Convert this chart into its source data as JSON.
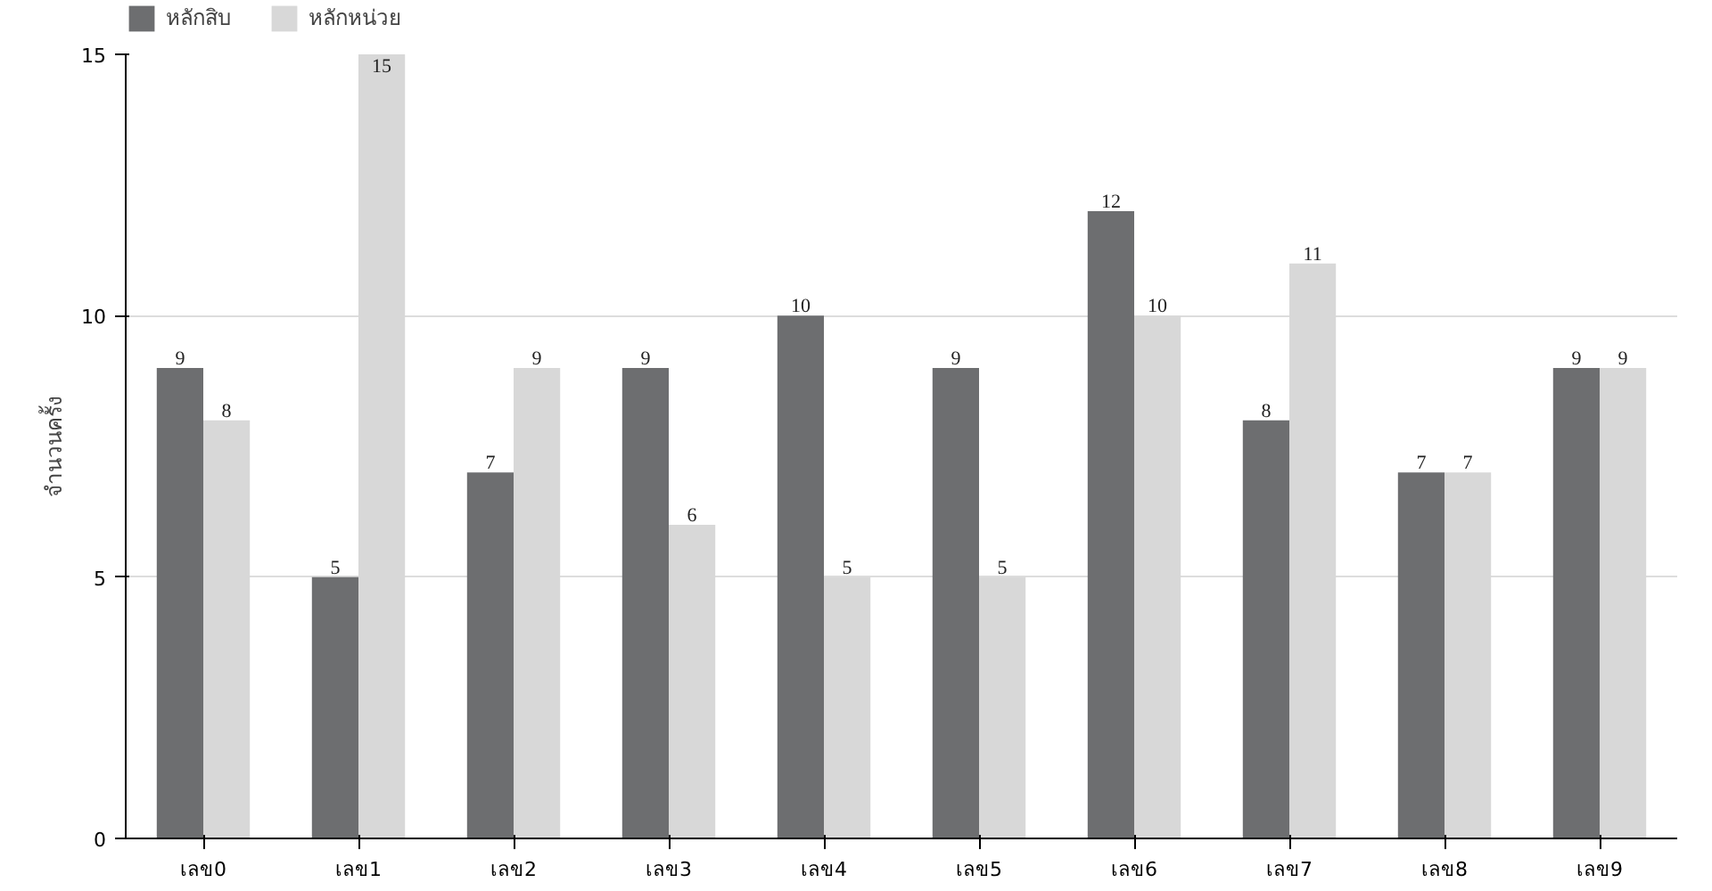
{
  "chart_data": {
    "type": "bar",
    "ylabel": "จำนวนครั้ง",
    "categories": [
      "เลข0",
      "เลข1",
      "เลข2",
      "เลข3",
      "เลข4",
      "เลข5",
      "เลข6",
      "เลข7",
      "เลข8",
      "เลข9"
    ],
    "series": [
      {
        "name": "หลักสิบ",
        "color": "#6d6e70",
        "values": [
          9,
          5,
          7,
          9,
          10,
          9,
          12,
          8,
          7,
          9
        ]
      },
      {
        "name": "หลักหน่วย",
        "color": "#d8d8d8",
        "values": [
          8,
          15,
          9,
          6,
          5,
          5,
          10,
          11,
          7,
          9
        ]
      }
    ],
    "ylim": [
      0,
      15
    ],
    "yticks": [
      0,
      5,
      10,
      15
    ],
    "grid": "y",
    "legend": "top left",
    "data_labels": true
  }
}
